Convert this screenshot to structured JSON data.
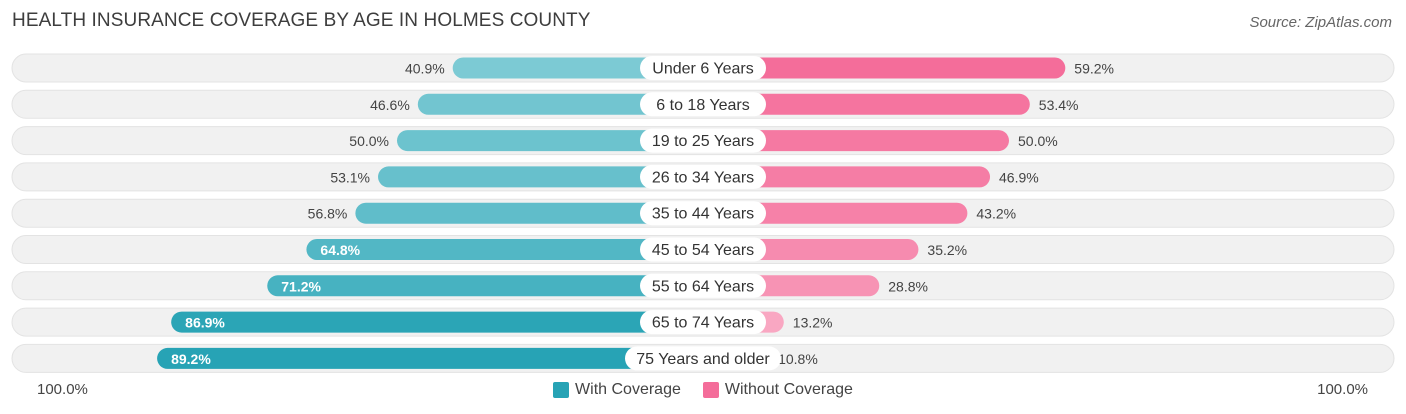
{
  "header": {
    "title": "HEALTH INSURANCE COVERAGE BY AGE IN HOLMES COUNTY",
    "source": "Source: ZipAtlas.com"
  },
  "legend": {
    "with_label": "With Coverage",
    "without_label": "Without Coverage"
  },
  "axis": {
    "left_label": "100.0%",
    "right_label": "100.0%"
  },
  "colors": {
    "with_strong": "#27a3b5",
    "with_light": "#7ccad4",
    "without_strong": "#f46d9a",
    "without_light": "#f9aac4",
    "track": "#f1f1f1"
  },
  "chart_data": {
    "type": "bar",
    "orientation": "horizontal-diverging",
    "title": "HEALTH INSURANCE COVERAGE BY AGE IN HOLMES COUNTY",
    "categories": [
      "Under 6 Years",
      "6 to 18 Years",
      "19 to 25 Years",
      "26 to 34 Years",
      "35 to 44 Years",
      "45 to 54 Years",
      "55 to 64 Years",
      "65 to 74 Years",
      "75 Years and older"
    ],
    "series": [
      {
        "name": "With Coverage",
        "values": [
          40.9,
          46.6,
          50.0,
          53.1,
          56.8,
          64.8,
          71.2,
          86.9,
          89.2
        ],
        "labels": [
          "40.9%",
          "46.6%",
          "50.0%",
          "53.1%",
          "56.8%",
          "64.8%",
          "71.2%",
          "86.9%",
          "89.2%"
        ]
      },
      {
        "name": "Without Coverage",
        "values": [
          59.2,
          53.4,
          50.0,
          46.9,
          43.2,
          35.2,
          28.8,
          13.2,
          10.8
        ],
        "labels": [
          "59.2%",
          "53.4%",
          "50.0%",
          "46.9%",
          "43.2%",
          "35.2%",
          "28.8%",
          "13.2%",
          "10.8%"
        ]
      }
    ],
    "xlim": [
      0,
      100
    ],
    "legend_position": "bottom-center"
  }
}
